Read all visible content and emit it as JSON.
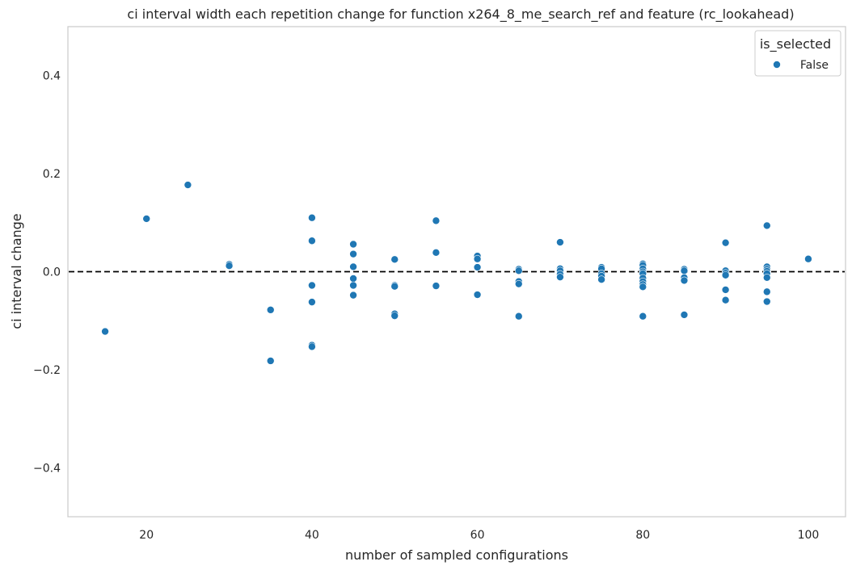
{
  "chart_data": {
    "type": "scatter",
    "title": "ci interval width each repetition change for function x264_8_me_search_ref and feature (rc_lookahead)",
    "xlabel": "number of sampled configurations",
    "ylabel": "ci interval change",
    "xlim": [
      10.5,
      104.5
    ],
    "ylim": [
      -0.5,
      0.5
    ],
    "xticks": [
      20,
      40,
      60,
      80,
      100
    ],
    "yticks": [
      -0.4,
      -0.2,
      0.0,
      0.2,
      0.4
    ],
    "xtick_labels": [
      "20",
      "40",
      "60",
      "80",
      "100"
    ],
    "ytick_labels": [
      "−0.4",
      "−0.2",
      "0.0",
      "0.2",
      "0.4"
    ],
    "grid": false,
    "reference_line": {
      "y": 0.0,
      "style": "dashed",
      "color": "#000000"
    },
    "legend": {
      "title": "is_selected",
      "position": "top-right",
      "entries": [
        "False"
      ]
    },
    "series": [
      {
        "name": "False",
        "color": "#1f77b4",
        "points": [
          [
            15,
            -0.122
          ],
          [
            20,
            0.108
          ],
          [
            25,
            0.177
          ],
          [
            30,
            0.015
          ],
          [
            30,
            0.012
          ],
          [
            35,
            -0.078
          ],
          [
            35,
            -0.182
          ],
          [
            40,
            0.11
          ],
          [
            40,
            0.063
          ],
          [
            40,
            -0.028
          ],
          [
            40,
            -0.062
          ],
          [
            40,
            -0.15
          ],
          [
            40,
            -0.153
          ],
          [
            45,
            0.056
          ],
          [
            45,
            0.036
          ],
          [
            45,
            0.01
          ],
          [
            45,
            -0.014
          ],
          [
            45,
            -0.028
          ],
          [
            45,
            -0.048
          ],
          [
            50,
            0.025
          ],
          [
            50,
            -0.028
          ],
          [
            50,
            -0.03
          ],
          [
            50,
            -0.086
          ],
          [
            50,
            -0.09
          ],
          [
            55,
            0.104
          ],
          [
            55,
            0.039
          ],
          [
            55,
            -0.029
          ],
          [
            60,
            0.032
          ],
          [
            60,
            0.026
          ],
          [
            60,
            0.009
          ],
          [
            60,
            -0.047
          ],
          [
            65,
            0.005
          ],
          [
            65,
            0.002
          ],
          [
            65,
            -0.02
          ],
          [
            65,
            -0.025
          ],
          [
            65,
            -0.091
          ],
          [
            70,
            0.06
          ],
          [
            70,
            0.006
          ],
          [
            70,
            0.002
          ],
          [
            70,
            -0.005
          ],
          [
            70,
            -0.011
          ],
          [
            75,
            0.009
          ],
          [
            75,
            0.006
          ],
          [
            75,
            -0.004
          ],
          [
            75,
            -0.009
          ],
          [
            75,
            -0.016
          ],
          [
            80,
            0.016
          ],
          [
            80,
            0.013
          ],
          [
            80,
            0.006
          ],
          [
            80,
            0.0
          ],
          [
            80,
            -0.004
          ],
          [
            80,
            -0.013
          ],
          [
            80,
            -0.02
          ],
          [
            80,
            -0.026
          ],
          [
            80,
            -0.031
          ],
          [
            80,
            -0.091
          ],
          [
            85,
            0.005
          ],
          [
            85,
            0.002
          ],
          [
            85,
            -0.012
          ],
          [
            85,
            -0.018
          ],
          [
            85,
            -0.088
          ],
          [
            90,
            0.059
          ],
          [
            90,
            0.002
          ],
          [
            90,
            -0.003
          ],
          [
            90,
            -0.007
          ],
          [
            90,
            -0.037
          ],
          [
            90,
            -0.058
          ],
          [
            95,
            0.094
          ],
          [
            95,
            0.01
          ],
          [
            95,
            0.005
          ],
          [
            95,
            0.001
          ],
          [
            95,
            -0.004
          ],
          [
            95,
            -0.012
          ],
          [
            95,
            -0.041
          ],
          [
            95,
            -0.061
          ],
          [
            100,
            0.026
          ]
        ]
      }
    ]
  }
}
